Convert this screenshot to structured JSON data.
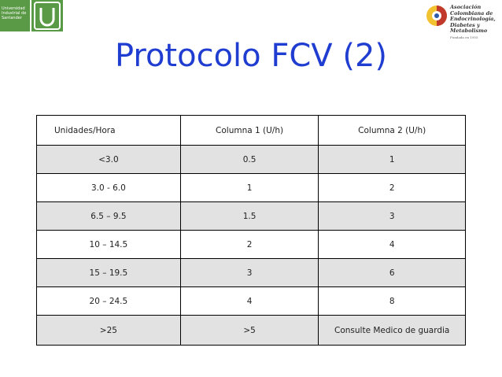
{
  "logos": {
    "left_text": "Universidad Industrial de Santander",
    "right_text": "Asociación Colombiana de Endocrinología, Diabetes y Metabolismo",
    "right_sub": "Fundada en 1955"
  },
  "title": "Protocolo FCV (2)",
  "table": {
    "headers": [
      "Unidades/Hora",
      "Columna 1 (U/h)",
      "Columna 2 (U/h)"
    ],
    "rows": [
      [
        "<3.0",
        "0.5",
        "1"
      ],
      [
        "3.0 - 6.0",
        "1",
        "2"
      ],
      [
        "6.5 – 9.5",
        "1.5",
        "3"
      ],
      [
        "10 – 14.5",
        "2",
        "4"
      ],
      [
        "15 – 19.5",
        "3",
        "6"
      ],
      [
        "20 – 24.5",
        "4",
        "8"
      ],
      [
        ">25",
        ">5",
        "Consulte Medico de guardia"
      ]
    ]
  },
  "colors": {
    "title": "#1f3dd0",
    "shade": "#e2e2e2",
    "logo_green": "#5a9a46"
  }
}
